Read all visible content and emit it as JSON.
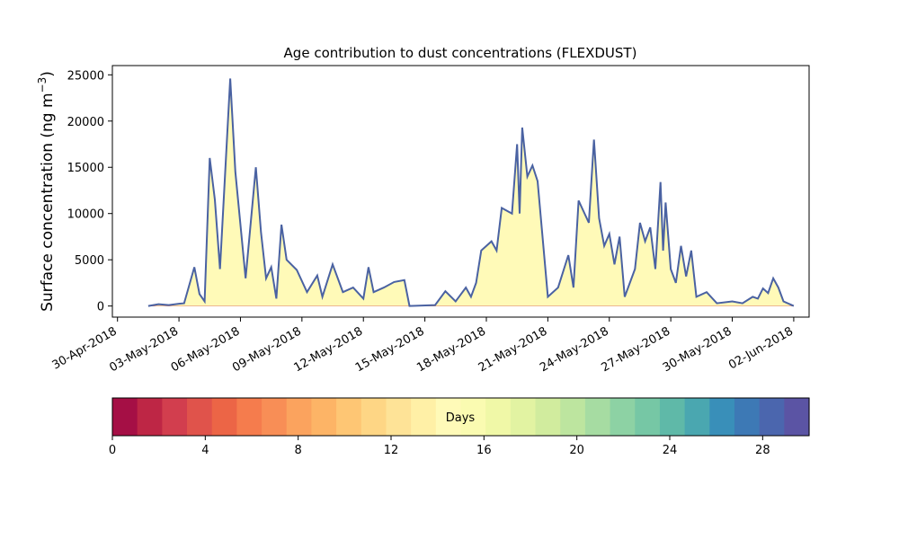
{
  "chart_data": {
    "type": "area",
    "title": "Age contribution to dust concentrations (FLEXDUST)",
    "ylabel": "Surface concentration (ng m",
    "ylabel_sup": "−3",
    "ylabel_close": ")",
    "xlabel": "",
    "ylim": [
      -1200,
      26000
    ],
    "xlim": [
      "2018-04-29T18:00",
      "2018-06-02T18:00"
    ],
    "yticks": [
      0,
      5000,
      10000,
      15000,
      20000,
      25000
    ],
    "xtick_dates": [
      "2018-04-30",
      "2018-05-03",
      "2018-05-06",
      "2018-05-09",
      "2018-05-12",
      "2018-05-15",
      "2018-05-18",
      "2018-05-21",
      "2018-05-24",
      "2018-05-27",
      "2018-05-30",
      "2018-06-02"
    ],
    "xtick_labels": [
      "30-Apr-2018",
      "03-May-2018",
      "06-May-2018",
      "09-May-2018",
      "12-May-2018",
      "15-May-2018",
      "18-May-2018",
      "21-May-2018",
      "24-May-2018",
      "27-May-2018",
      "30-May-2018",
      "02-Jun-2018"
    ],
    "grid": false,
    "stacked": true,
    "total_concentration": [
      [
        "2018-05-01T12:00",
        0
      ],
      [
        "2018-05-02T00:00",
        200
      ],
      [
        "2018-05-02T12:00",
        100
      ],
      [
        "2018-05-03T00:00",
        250
      ],
      [
        "2018-05-03T06:00",
        300
      ],
      [
        "2018-05-03T18:00",
        4200
      ],
      [
        "2018-05-04T00:00",
        1300
      ],
      [
        "2018-05-04T06:00",
        500
      ],
      [
        "2018-05-04T12:00",
        16000
      ],
      [
        "2018-05-04T18:00",
        11500
      ],
      [
        "2018-05-05T00:00",
        4000
      ],
      [
        "2018-05-05T12:00",
        24600
      ],
      [
        "2018-05-05T18:00",
        14500
      ],
      [
        "2018-05-06T06:00",
        3000
      ],
      [
        "2018-05-06T18:00",
        15000
      ],
      [
        "2018-05-07T00:00",
        8000
      ],
      [
        "2018-05-07T06:00",
        3000
      ],
      [
        "2018-05-07T12:00",
        4200
      ],
      [
        "2018-05-07T18:00",
        800
      ],
      [
        "2018-05-08T00:00",
        8800
      ],
      [
        "2018-05-08T06:00",
        5000
      ],
      [
        "2018-05-08T18:00",
        3900
      ],
      [
        "2018-05-09T06:00",
        1500
      ],
      [
        "2018-05-09T18:00",
        3300
      ],
      [
        "2018-05-10T00:00",
        1000
      ],
      [
        "2018-05-10T12:00",
        4500
      ],
      [
        "2018-05-11T00:00",
        1500
      ],
      [
        "2018-05-11T12:00",
        2000
      ],
      [
        "2018-05-12T00:00",
        800
      ],
      [
        "2018-05-12T06:00",
        4200
      ],
      [
        "2018-05-12T12:00",
        1500
      ],
      [
        "2018-05-13T00:00",
        2000
      ],
      [
        "2018-05-13T12:00",
        2600
      ],
      [
        "2018-05-14T00:00",
        2800
      ],
      [
        "2018-05-14T06:00",
        0
      ],
      [
        "2018-05-15T12:00",
        100
      ],
      [
        "2018-05-16T00:00",
        1600
      ],
      [
        "2018-05-16T12:00",
        500
      ],
      [
        "2018-05-17T00:00",
        2000
      ],
      [
        "2018-05-17T06:00",
        1000
      ],
      [
        "2018-05-17T12:00",
        2500
      ],
      [
        "2018-05-17T18:00",
        6000
      ],
      [
        "2018-05-18T06:00",
        7000
      ],
      [
        "2018-05-18T12:00",
        6000
      ],
      [
        "2018-05-18T18:00",
        10600
      ],
      [
        "2018-05-19T06:00",
        10000
      ],
      [
        "2018-05-19T12:00",
        17500
      ],
      [
        "2018-05-19T15:00",
        10000
      ],
      [
        "2018-05-19T18:00",
        19300
      ],
      [
        "2018-05-20T00:00",
        14000
      ],
      [
        "2018-05-20T06:00",
        15200
      ],
      [
        "2018-05-20T12:00",
        13500
      ],
      [
        "2018-05-21T00:00",
        1000
      ],
      [
        "2018-05-21T12:00",
        2000
      ],
      [
        "2018-05-22T00:00",
        5500
      ],
      [
        "2018-05-22T06:00",
        2000
      ],
      [
        "2018-05-22T12:00",
        11400
      ],
      [
        "2018-05-23T00:00",
        9000
      ],
      [
        "2018-05-23T06:00",
        18000
      ],
      [
        "2018-05-23T12:00",
        9500
      ],
      [
        "2018-05-23T18:00",
        6500
      ],
      [
        "2018-05-24T00:00",
        7800
      ],
      [
        "2018-05-24T06:00",
        4500
      ],
      [
        "2018-05-24T12:00",
        7500
      ],
      [
        "2018-05-24T18:00",
        1000
      ],
      [
        "2018-05-25T06:00",
        4000
      ],
      [
        "2018-05-25T12:00",
        9000
      ],
      [
        "2018-05-25T18:00",
        7000
      ],
      [
        "2018-05-26T00:00",
        8500
      ],
      [
        "2018-05-26T06:00",
        4000
      ],
      [
        "2018-05-26T12:00",
        13400
      ],
      [
        "2018-05-26T15:00",
        6000
      ],
      [
        "2018-05-26T18:00",
        11200
      ],
      [
        "2018-05-27T00:00",
        4000
      ],
      [
        "2018-05-27T06:00",
        2500
      ],
      [
        "2018-05-27T12:00",
        6500
      ],
      [
        "2018-05-27T18:00",
        3200
      ],
      [
        "2018-05-28T00:00",
        6000
      ],
      [
        "2018-05-28T06:00",
        1000
      ],
      [
        "2018-05-28T18:00",
        1500
      ],
      [
        "2018-05-29T06:00",
        300
      ],
      [
        "2018-05-30T00:00",
        500
      ],
      [
        "2018-05-30T12:00",
        300
      ],
      [
        "2018-05-31T00:00",
        1000
      ],
      [
        "2018-05-31T06:00",
        800
      ],
      [
        "2018-05-31T12:00",
        1900
      ],
      [
        "2018-05-31T18:00",
        1400
      ],
      [
        "2018-06-01T00:00",
        3000
      ],
      [
        "2018-06-01T06:00",
        2000
      ],
      [
        "2018-06-01T12:00",
        500
      ],
      [
        "2018-06-02T00:00",
        0
      ]
    ],
    "layer_bands_days": [
      0,
      1,
      2,
      3,
      4,
      5,
      6,
      7,
      8,
      9,
      10,
      11,
      12,
      13,
      14,
      15,
      16,
      17,
      18,
      19,
      20,
      21,
      22,
      23,
      24,
      25,
      26,
      27,
      28,
      29,
      30
    ],
    "outline_color": "#4a62a2",
    "colorbar": {
      "label": "Days",
      "min": 0,
      "max": 30,
      "ticks": [
        0,
        4,
        8,
        12,
        16,
        20,
        24,
        28
      ],
      "colors": [
        "#a50f45",
        "#be2645",
        "#d23e4e",
        "#e0534b",
        "#ec6546",
        "#f57c4d",
        "#f88e56",
        "#fba35e",
        "#fdb466",
        "#fec674",
        "#fed685",
        "#fee397",
        "#fff0a6",
        "#fffab8",
        "#fafbb1",
        "#f0f8a7",
        "#e2f3a2",
        "#d1ec9e",
        "#bde59f",
        "#a6dca2",
        "#8dd2a4",
        "#76c7a5",
        "#5fb9a8",
        "#4aa7b0",
        "#398fb9",
        "#3d79b5",
        "#4b66ae",
        "#5b54a4"
      ]
    }
  }
}
